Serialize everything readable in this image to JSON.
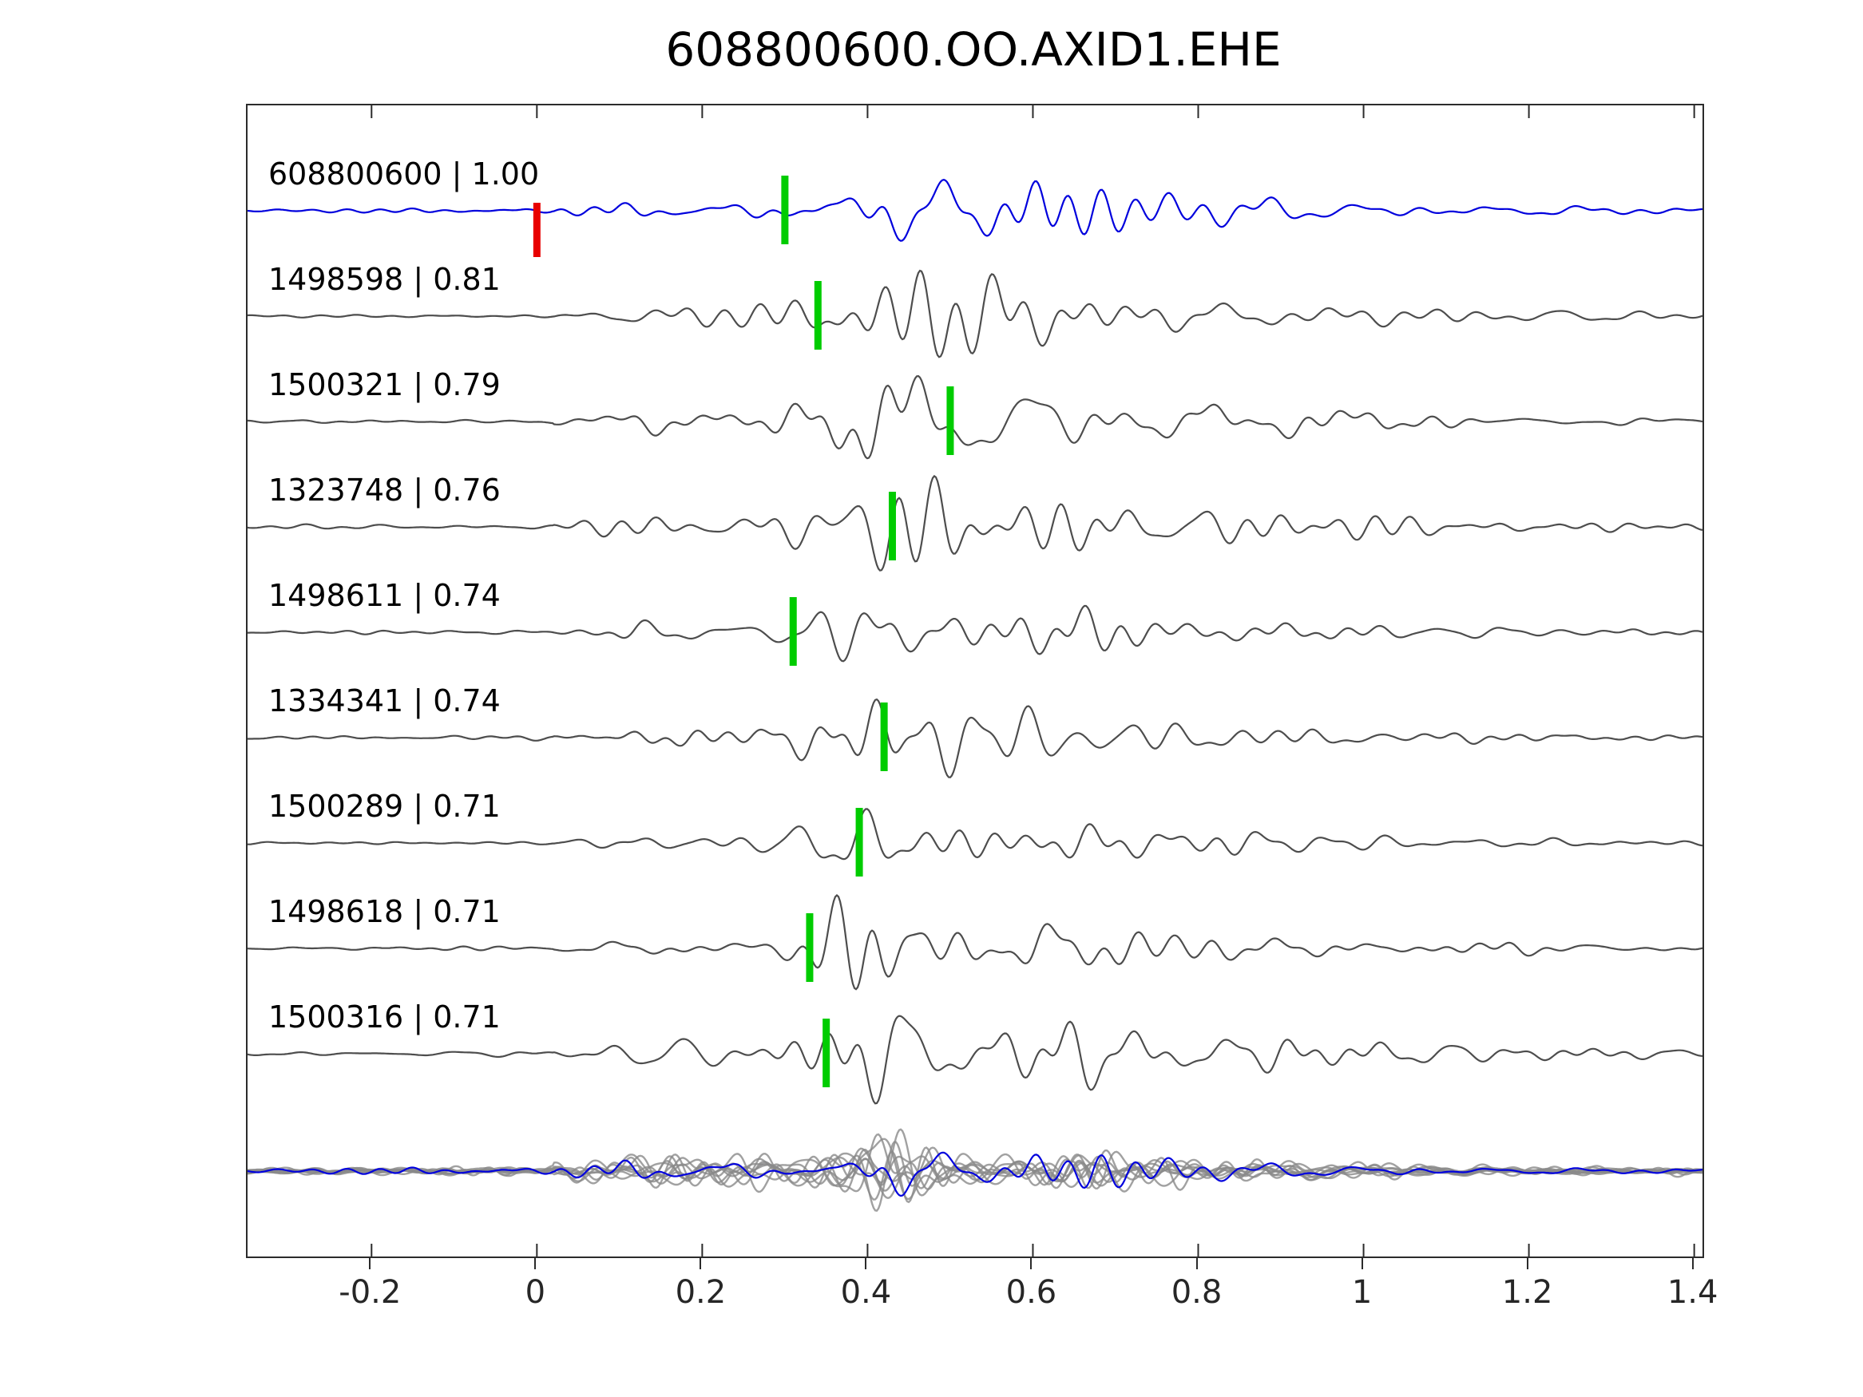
{
  "figure": {
    "title": "608800600.OO.AXID1.EHE"
  },
  "chart_data": {
    "type": "line",
    "title": "608800600.OO.AXID1.EHE",
    "xlabel": "",
    "ylabel": "",
    "xlim": [
      -0.35,
      1.41
    ],
    "x_ticks": [
      "-0.2",
      "0",
      "0.2",
      "0.4",
      "0.6",
      "0.8",
      "1",
      "1.2",
      "1.4"
    ],
    "x_tick_values": [
      -0.2,
      0,
      0.2,
      0.4,
      0.6,
      0.8,
      1,
      1.2,
      1.4
    ],
    "grid": false,
    "legend_position": "none",
    "colors": {
      "template_trace": "#0000dd",
      "detection_trace": "#4d4d4d",
      "pick_marker": "#00cc00",
      "origin_marker": "#e80000",
      "stack_gray": "#8a8a8a",
      "stack_highlight": "#0000dd",
      "axis": "#2b2b2b"
    },
    "traces": [
      {
        "id": "608800600",
        "label": "608800600 | 1.00",
        "correlation": 1.0,
        "color": "#0000dd",
        "pick_time": 0.3,
        "origin_time": 0.0
      },
      {
        "id": "1498598",
        "label": "1498598 | 0.81",
        "correlation": 0.81,
        "color": "#4d4d4d",
        "pick_time": 0.34
      },
      {
        "id": "1500321",
        "label": "1500321 | 0.79",
        "correlation": 0.79,
        "color": "#4d4d4d",
        "pick_time": 0.5
      },
      {
        "id": "1323748",
        "label": "1323748 | 0.76",
        "correlation": 0.76,
        "color": "#4d4d4d",
        "pick_time": 0.43
      },
      {
        "id": "1498611",
        "label": "1498611 | 0.74",
        "correlation": 0.74,
        "color": "#4d4d4d",
        "pick_time": 0.31
      },
      {
        "id": "1334341",
        "label": "1334341 | 0.74",
        "correlation": 0.74,
        "color": "#4d4d4d",
        "pick_time": 0.42
      },
      {
        "id": "1500289",
        "label": "1500289 | 0.71",
        "correlation": 0.71,
        "color": "#4d4d4d",
        "pick_time": 0.39
      },
      {
        "id": "1498618",
        "label": "1498618 | 0.71",
        "correlation": 0.71,
        "color": "#4d4d4d",
        "pick_time": 0.33
      },
      {
        "id": "1500316",
        "label": "1500316 | 0.71",
        "correlation": 0.71,
        "color": "#4d4d4d",
        "pick_time": 0.35
      }
    ],
    "stack": {
      "n_overlaid": 9,
      "gray": "#8a8a8a",
      "highlight": "#0000dd"
    }
  }
}
